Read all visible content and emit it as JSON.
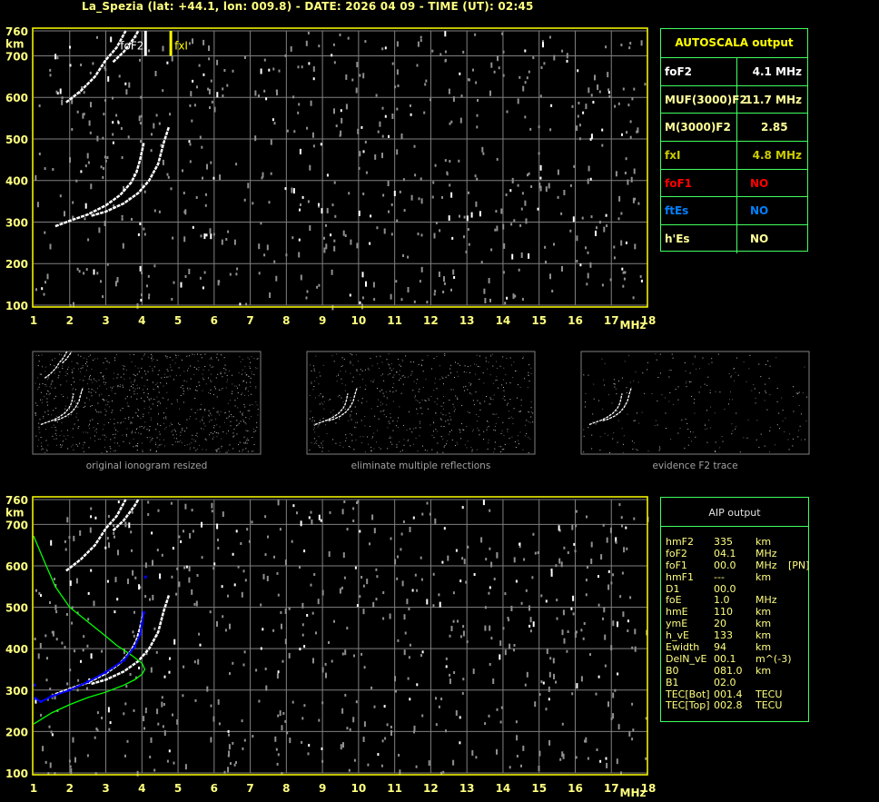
{
  "header": {
    "title": "La_Spezia (lat: +44.1, lon: 009.8) - DATE: 2026 04 09 - TIME (UT): 02:45"
  },
  "colors": {
    "axis_box": "#ffff00",
    "axis_labels": "#ffff80",
    "grid": "#808080",
    "o_trace": "#ffffff",
    "noise": "#909090",
    "fxI_marker": "#ffff00",
    "profile": "#00ff00",
    "fitted_trace": "#0000ff",
    "table_border": "#40ff60"
  },
  "autoscala": {
    "title": "AUTOSCALA output",
    "rows": [
      {
        "key": "foF2",
        "value": "4.1 MHz",
        "color": "#ffffff"
      },
      {
        "key": "MUF(3000)F2",
        "value": "11.7 MHz",
        "color": "#ffff99"
      },
      {
        "key": "M(3000)F2",
        "value": "2.85",
        "color": "#ffff99"
      },
      {
        "key": "fxI",
        "value": "4.8 MHz",
        "color": "#cccc00"
      },
      {
        "key": "foF1",
        "value": "NO",
        "color": "#ff0000"
      },
      {
        "key": "ftEs",
        "value": "NO",
        "color": "#0080ff"
      },
      {
        "key": "h'Es",
        "value": "NO",
        "color": "#ffff99"
      }
    ]
  },
  "aip": {
    "title": "AIP output",
    "rows": [
      [
        "hmF2",
        "335",
        "km",
        ""
      ],
      [
        "foF2",
        "04.1",
        "MHz",
        ""
      ],
      [
        "foF1",
        "00.0",
        "MHz",
        "[PN]"
      ],
      [
        "hmF1",
        "---",
        "km",
        ""
      ],
      [
        "D1",
        "00.0",
        "",
        ""
      ],
      [
        "foE",
        "1.0",
        "MHz",
        ""
      ],
      [
        "hmE",
        "110",
        "km",
        ""
      ],
      [
        "ymE",
        "20",
        "km",
        ""
      ],
      [
        "h_vE",
        "133",
        "km",
        ""
      ],
      [
        "Ewidth",
        "94",
        "km",
        ""
      ],
      [
        "DelN_vE",
        "00.1",
        "m^(-3)",
        ""
      ],
      [
        "B0",
        "081.0",
        "km",
        ""
      ],
      [
        "B1",
        "02.0",
        "",
        ""
      ],
      [
        "TEC[Bot]",
        "001.4",
        "TECU",
        ""
      ],
      [
        "TEC[Top]",
        "002.8",
        "TECU",
        ""
      ]
    ]
  },
  "thumbnails": [
    {
      "label": "original ionogram resized"
    },
    {
      "label": "eliminate multiple reflections"
    },
    {
      "label": "evidence F2 trace"
    }
  ],
  "chart_data": [
    {
      "type": "scatter",
      "title": "",
      "xlabel": "MHz",
      "ylabel": "km",
      "xlim": [
        1,
        18
      ],
      "ylim": [
        100,
        760
      ],
      "x_ticks": [
        "1",
        "2",
        "3",
        "4",
        "5",
        "6",
        "7",
        "8",
        "9",
        "10",
        "11",
        "12",
        "13",
        "14",
        "15",
        "16",
        "17",
        "18"
      ],
      "y_ticks": [
        "100",
        "200",
        "300",
        "400",
        "500",
        "600",
        "700",
        "760"
      ],
      "grid": true,
      "annotations": [
        {
          "text": "foF2",
          "x": 4.1
        },
        {
          "text": "fxI",
          "x": 4.8
        }
      ],
      "traces": {
        "o_trace": [
          [
            1.6,
            290
          ],
          [
            2.0,
            303
          ],
          [
            2.5,
            318
          ],
          [
            3.0,
            340
          ],
          [
            3.4,
            365
          ],
          [
            3.7,
            395
          ],
          [
            3.85,
            420
          ],
          [
            3.95,
            450
          ],
          [
            4.05,
            490
          ]
        ],
        "x_trace": [
          [
            2.6,
            315
          ],
          [
            3.0,
            325
          ],
          [
            3.5,
            345
          ],
          [
            3.9,
            370
          ],
          [
            4.2,
            400
          ],
          [
            4.45,
            440
          ],
          [
            4.6,
            490
          ],
          [
            4.75,
            530
          ]
        ],
        "second_hop_1": [
          [
            1.9,
            588
          ],
          [
            2.3,
            615
          ],
          [
            2.7,
            650
          ],
          [
            3.0,
            690
          ],
          [
            3.3,
            720
          ],
          [
            3.55,
            760
          ]
        ],
        "second_hop_2": [
          [
            3.2,
            685
          ],
          [
            3.5,
            710
          ],
          [
            3.8,
            745
          ],
          [
            3.9,
            760
          ]
        ],
        "foF2_marker": [
          [
            4.1,
            700
          ],
          [
            4.1,
            760
          ]
        ],
        "fxI_marker": [
          [
            4.8,
            700
          ],
          [
            4.8,
            760
          ]
        ]
      }
    },
    {
      "type": "line",
      "title": "",
      "xlabel": "MHz",
      "ylabel": "km",
      "xlim": [
        1,
        18
      ],
      "ylim": [
        100,
        760
      ],
      "grid": true,
      "series": [
        {
          "role": "electron density profile",
          "color": "#00ff00",
          "points": [
            [
              1.0,
              218
            ],
            [
              1.5,
              245
            ],
            [
              2.0,
              265
            ],
            [
              2.5,
              282
            ],
            [
              3.0,
              295
            ],
            [
              3.5,
              312
            ],
            [
              3.8,
              325
            ],
            [
              4.0,
              338
            ],
            [
              4.08,
              350
            ],
            [
              4.0,
              365
            ],
            [
              3.7,
              385
            ],
            [
              3.3,
              408
            ],
            [
              3.0,
              430
            ],
            [
              2.5,
              465
            ],
            [
              2.0,
              500
            ],
            [
              1.6,
              550
            ],
            [
              1.3,
              610
            ],
            [
              1.0,
              672
            ]
          ]
        },
        {
          "role": "fitted trace",
          "color": "#0000ff",
          "points": [
            [
              1.02,
              312
            ],
            [
              1.05,
              280
            ],
            [
              1.2,
              272
            ],
            [
              1.5,
              285
            ],
            [
              2.0,
              300
            ],
            [
              2.5,
              320
            ],
            [
              3.0,
              343
            ],
            [
              3.5,
              372
            ],
            [
              3.8,
              405
            ],
            [
              3.95,
              435
            ],
            [
              4.0,
              460
            ],
            [
              4.05,
              487
            ],
            [
              4.1,
              573
            ]
          ]
        }
      ]
    }
  ]
}
